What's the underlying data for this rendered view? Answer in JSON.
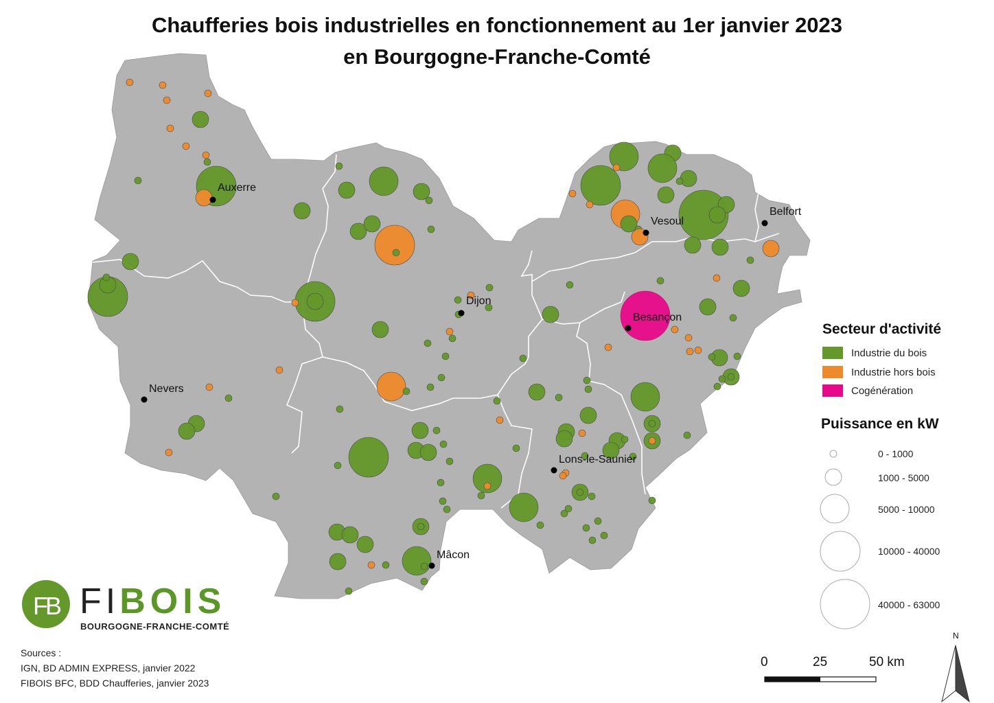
{
  "title": {
    "line1": "Chaufferies bois industrielles en fonctionnement au 1er janvier 2023",
    "line2": "en Bourgogne-Franche-Comté"
  },
  "legend": {
    "sector_title": "Secteur d'activité",
    "sectors": [
      {
        "label": "Industrie du bois",
        "color": "#64982a"
      },
      {
        "label": "Industrie hors bois",
        "color": "#ee8a2c"
      },
      {
        "label": "Cogénération",
        "color": "#e8098a"
      }
    ],
    "power_title": "Puissance en kW",
    "power_classes": [
      "0 - 1000",
      "1000 - 5000",
      "5000 - 10000",
      "10000 - 40000",
      "40000 - 63000"
    ]
  },
  "cities": [
    "Auxerre",
    "Belfort",
    "Vesoul",
    "Dijon",
    "Besançon",
    "Nevers",
    "Lons-le-Saunier",
    "Mâcon"
  ],
  "sources": {
    "heading": "Sources :",
    "line1": "IGN, BD ADMIN EXPRESS, janvier 2022",
    "line2": "FIBOIS BFC, BDD Chaufferies, janvier 2023"
  },
  "scale": {
    "ticks": [
      "0",
      "25",
      "50 km"
    ]
  },
  "north": "N",
  "logo": {
    "initials": "FB",
    "name_light": "FI",
    "name_bold": "BOIS",
    "subtitle": "BOURGOGNE-FRANCHE-COMTÉ"
  },
  "colors": {
    "region": "#b3b3b3",
    "boundary": "#ffffff",
    "wood": "#64982a",
    "nonwood": "#ee8a2c",
    "cogen": "#e8098a"
  }
}
